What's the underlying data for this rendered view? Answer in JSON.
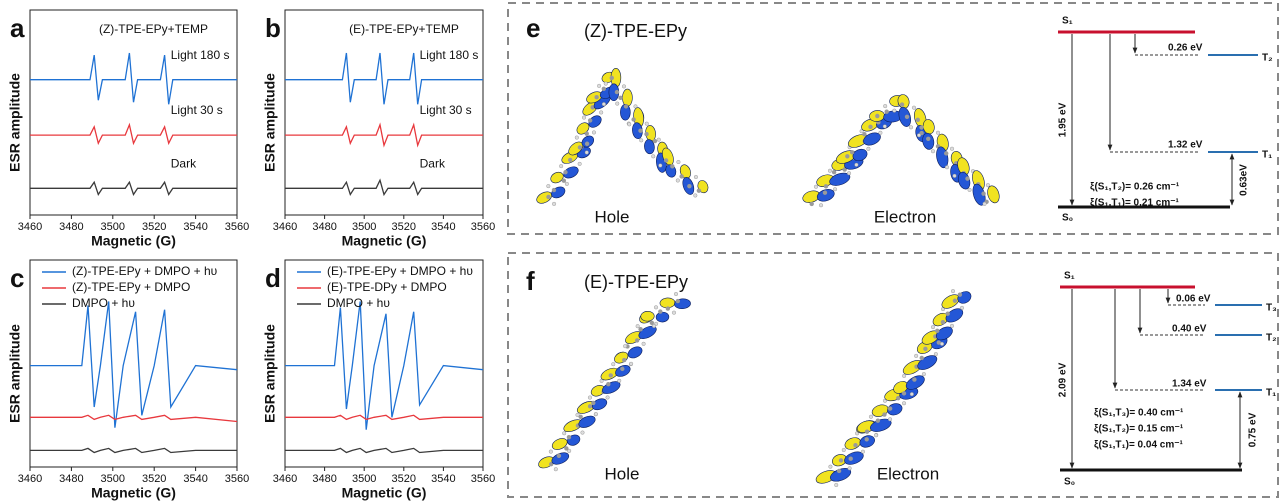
{
  "chart_data": [
    {
      "type": "line",
      "panel_label": "a",
      "title": "(Z)-TPE-EPy+TEMP",
      "x_label": "Magnetic (G)",
      "y_label": "ESR amplitude",
      "xlim": [
        3460,
        3560
      ],
      "xticks": [
        3460,
        3480,
        3500,
        3520,
        3540,
        3560
      ],
      "ylim": [
        0,
        10
      ],
      "legend": false,
      "x": [
        3460,
        3480,
        3489,
        3491,
        3493,
        3495,
        3506,
        3508,
        3510,
        3512,
        3523,
        3525,
        3527,
        3529,
        3540,
        3560
      ],
      "series": [
        {
          "name": "Light 180 s",
          "color": "#1f72d4",
          "values": [
            6.6,
            6.6,
            6.6,
            7.8,
            5.6,
            6.6,
            6.6,
            7.9,
            5.5,
            6.6,
            6.6,
            7.8,
            5.4,
            6.6,
            6.6,
            6.6
          ]
        },
        {
          "name": "Light 30 s",
          "color": "#e8383d",
          "values": [
            3.9,
            3.9,
            3.9,
            4.3,
            3.5,
            3.9,
            3.9,
            4.4,
            3.5,
            3.9,
            3.9,
            4.3,
            3.5,
            3.9,
            3.9,
            3.9
          ]
        },
        {
          "name": "Dark",
          "color": "#3a3a3a",
          "values": [
            1.3,
            1.3,
            1.3,
            1.6,
            1.0,
            1.3,
            1.3,
            1.6,
            1.0,
            1.3,
            1.3,
            1.6,
            1.0,
            1.3,
            1.3,
            1.3
          ]
        }
      ]
    },
    {
      "type": "line",
      "panel_label": "b",
      "title": "(E)-TPE-EPy+TEMP",
      "x_label": "Magnetic (G)",
      "y_label": "ESR amplitude",
      "xlim": [
        3460,
        3560
      ],
      "xticks": [
        3460,
        3480,
        3500,
        3520,
        3540,
        3560
      ],
      "ylim": [
        0,
        10
      ],
      "legend": false,
      "x": [
        3460,
        3480,
        3489,
        3491,
        3493,
        3495,
        3506,
        3508,
        3510,
        3512,
        3523,
        3525,
        3527,
        3529,
        3540,
        3560
      ],
      "series": [
        {
          "name": "Light 180 s",
          "color": "#1f72d4",
          "values": [
            6.6,
            6.6,
            6.6,
            7.9,
            5.5,
            6.6,
            6.6,
            7.9,
            5.4,
            6.6,
            6.6,
            7.9,
            5.4,
            6.6,
            6.6,
            6.6
          ]
        },
        {
          "name": "Light 30 s",
          "color": "#e8383d",
          "values": [
            3.9,
            3.9,
            3.9,
            4.3,
            3.5,
            3.9,
            3.9,
            4.4,
            3.4,
            3.9,
            3.9,
            4.4,
            3.4,
            3.9,
            3.9,
            3.9
          ]
        },
        {
          "name": "Dark",
          "color": "#3a3a3a",
          "values": [
            1.3,
            1.3,
            1.3,
            1.6,
            1.0,
            1.3,
            1.3,
            1.7,
            1.0,
            1.3,
            1.3,
            1.6,
            1.0,
            1.3,
            1.3,
            1.3
          ]
        }
      ]
    },
    {
      "type": "line",
      "panel_label": "c",
      "x_label": "Magnetic (G)",
      "y_label": "ESR amplitude",
      "xlim": [
        3460,
        3560
      ],
      "xticks": [
        3460,
        3480,
        3500,
        3520,
        3540,
        3560
      ],
      "ylim": [
        0,
        10
      ],
      "legend": true,
      "x": [
        3460,
        3485,
        3488,
        3491,
        3494,
        3498,
        3501,
        3505,
        3511,
        3514,
        3520,
        3525,
        3528,
        3540,
        3560
      ],
      "series": [
        {
          "name": "(Z)-TPE-EPy + DMPO + hυ",
          "color": "#1f72d4",
          "values": [
            4.9,
            4.9,
            7.8,
            2.9,
            4.9,
            8.0,
            1.9,
            4.9,
            7.5,
            2.5,
            4.9,
            7.6,
            2.9,
            4.9,
            4.7
          ]
        },
        {
          "name": "(Z)-TPE-EPy + DMPO",
          "color": "#e8383d",
          "values": [
            2.4,
            2.4,
            2.5,
            2.3,
            2.4,
            2.5,
            2.3,
            2.4,
            2.5,
            2.3,
            2.4,
            2.5,
            2.3,
            2.4,
            2.2
          ]
        },
        {
          "name": "DMPO + hυ",
          "color": "#3a3a3a",
          "values": [
            0.8,
            0.8,
            0.9,
            0.7,
            0.8,
            0.9,
            0.7,
            0.8,
            0.9,
            0.7,
            0.8,
            0.9,
            0.7,
            0.8,
            0.8
          ]
        }
      ]
    },
    {
      "type": "line",
      "panel_label": "d",
      "x_label": "Magnetic (G)",
      "y_label": "ESR amplitude",
      "xlim": [
        3460,
        3560
      ],
      "xticks": [
        3460,
        3480,
        3500,
        3520,
        3540,
        3560
      ],
      "ylim": [
        0,
        10
      ],
      "legend": true,
      "x": [
        3460,
        3485,
        3488,
        3491,
        3494,
        3498,
        3501,
        3505,
        3511,
        3514,
        3520,
        3525,
        3528,
        3540,
        3560
      ],
      "series": [
        {
          "name": "(E)-TPE-EPy + DMPO + hυ",
          "color": "#1f72d4",
          "values": [
            4.9,
            4.9,
            7.7,
            2.8,
            4.9,
            8.0,
            1.8,
            4.9,
            7.4,
            2.4,
            4.9,
            7.5,
            3.0,
            4.9,
            4.7
          ]
        },
        {
          "name": "(E)-TPE-DPy + DMPO",
          "color": "#e8383d",
          "values": [
            2.4,
            2.4,
            2.5,
            2.3,
            2.4,
            2.5,
            2.3,
            2.4,
            2.5,
            2.3,
            2.4,
            2.5,
            2.3,
            2.4,
            2.4
          ]
        },
        {
          "name": "DMPO + hυ",
          "color": "#3a3a3a",
          "values": [
            0.8,
            0.8,
            0.9,
            0.7,
            0.8,
            0.9,
            0.7,
            0.8,
            0.9,
            0.7,
            0.8,
            0.9,
            0.7,
            0.8,
            0.8
          ]
        }
      ]
    }
  ],
  "panel_e": {
    "label": "e",
    "title": "(Z)-TPE-EPy",
    "hole": "Hole",
    "electron": "Electron",
    "s1": "S₁",
    "s0": "S₀",
    "t2": "T₂",
    "t1": "T₁",
    "gap_t2": "0.26 eV",
    "gap_t1": "1.32 eV",
    "gap_s0": "1.95 eV",
    "gap_t1_s0": "0.63eV",
    "soc": [
      "ξ(S₁,T₂)= 0.26 cm⁻¹",
      "ξ(S₁,T₁)= 0.21 cm⁻¹"
    ]
  },
  "panel_f": {
    "label": "f",
    "title": "(E)-TPE-EPy",
    "hole": "Hole",
    "electron": "Electron",
    "s1": "S₁",
    "s0": "S₀",
    "t3": "T₃",
    "t2": "T₂",
    "t1": "T₁",
    "gap_t3": "0.06 eV",
    "gap_t2": "0.40 eV",
    "gap_t1": "1.34 eV",
    "gap_s0": "2.09 eV",
    "gap_t1_s0": "0.75 eV",
    "soc": [
      "ξ(S₁,T₃)= 0.40 cm⁻¹",
      "ξ(S₁,T₂)= 0.15 cm⁻¹",
      "ξ(S₁,T₁)= 0.04 cm⁻¹"
    ]
  }
}
